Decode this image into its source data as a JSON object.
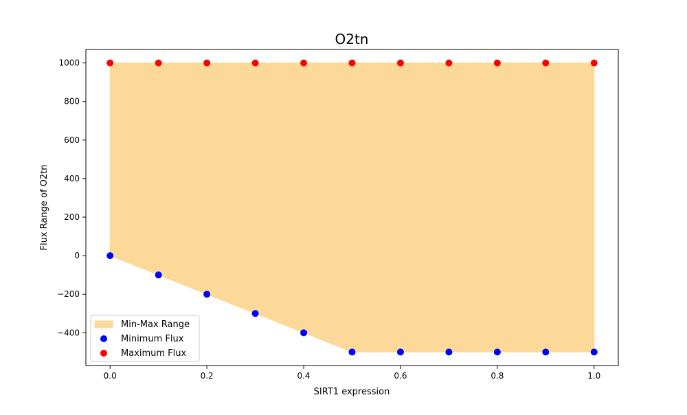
{
  "chart_data": {
    "type": "scatter",
    "title": "O2tn",
    "xlabel": "SIRT1 expression",
    "ylabel": "Flux Range of O2tn",
    "x": [
      0.0,
      0.1,
      0.2,
      0.3,
      0.4,
      0.5,
      0.6,
      0.7,
      0.8,
      0.9,
      1.0
    ],
    "xlim": [
      -0.05,
      1.05
    ],
    "ylim": [
      -570,
      1070
    ],
    "xticks": [
      0.0,
      0.2,
      0.4,
      0.6,
      0.8,
      1.0
    ],
    "xtick_labels": [
      "0.0",
      "0.2",
      "0.4",
      "0.6",
      "0.8",
      "1.0"
    ],
    "yticks": [
      -400,
      -200,
      0,
      200,
      400,
      600,
      800,
      1000
    ],
    "ytick_labels": [
      "−400",
      "−200",
      "0",
      "200",
      "400",
      "600",
      "800",
      "1000"
    ],
    "grid": false,
    "legend_position": "lower-left",
    "fill": {
      "name": "Min-Max Range",
      "color": "#fdd999"
    },
    "series": [
      {
        "name": "Minimum Flux",
        "color": "#0000ff",
        "values": [
          0,
          -100,
          -200,
          -300,
          -400,
          -500,
          -500,
          -500,
          -500,
          -500,
          -500
        ]
      },
      {
        "name": "Maximum Flux",
        "color": "#ff0000",
        "values": [
          1000,
          1000,
          1000,
          1000,
          1000,
          1000,
          1000,
          1000,
          1000,
          1000,
          1000
        ]
      }
    ]
  }
}
